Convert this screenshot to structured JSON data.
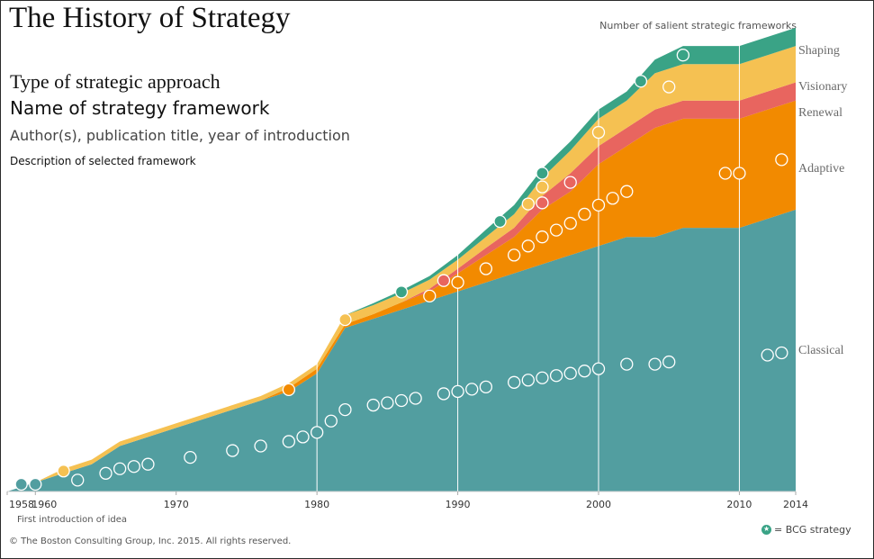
{
  "header": {
    "title": "The History of Strategy",
    "legend_line1": "Type of strategic approach",
    "legend_line2": "Name of strategy framework",
    "legend_line3": "Author(s), publication title, year of introduction",
    "legend_line4": "Description of selected framework"
  },
  "count_label": "Number of salient strategic frameworks",
  "first_intro_label": "First introduction of idea",
  "copyright": "© The Boston Consulting Group, Inc. 2015. All rights reserved.",
  "bcg_legend": "= BCG strategy",
  "colors": {
    "Classical": "#529ea0",
    "Adaptive": "#f28a00",
    "Renewal": "#e8655f",
    "Visionary": "#f5c152",
    "Shaping": "#3aa386"
  },
  "chart_data": {
    "type": "area",
    "stacked": true,
    "x_ticks": [
      "1958",
      "1960",
      "1970",
      "1980",
      "1990",
      "2000",
      "2010",
      "2014"
    ],
    "xlim": [
      1958,
      2014
    ],
    "series": [
      {
        "name": "Classical",
        "points": [
          [
            1958,
            0
          ],
          [
            1960,
            1
          ],
          [
            1962,
            2
          ],
          [
            1964,
            3
          ],
          [
            1966,
            5
          ],
          [
            1968,
            6
          ],
          [
            1970,
            7
          ],
          [
            1972,
            8
          ],
          [
            1974,
            9
          ],
          [
            1976,
            10
          ],
          [
            1978,
            11
          ],
          [
            1980,
            13
          ],
          [
            1982,
            18
          ],
          [
            1984,
            19
          ],
          [
            1986,
            20
          ],
          [
            1988,
            21
          ],
          [
            1990,
            22
          ],
          [
            1992,
            23
          ],
          [
            1994,
            24
          ],
          [
            1996,
            25
          ],
          [
            1998,
            26
          ],
          [
            2000,
            27
          ],
          [
            2002,
            28
          ],
          [
            2004,
            28
          ],
          [
            2006,
            29
          ],
          [
            2008,
            29
          ],
          [
            2010,
            29
          ],
          [
            2012,
            30
          ],
          [
            2014,
            31
          ]
        ]
      },
      {
        "name": "Adaptive",
        "points": [
          [
            1958,
            0
          ],
          [
            1960,
            0
          ],
          [
            1962,
            0
          ],
          [
            1964,
            0
          ],
          [
            1966,
            0
          ],
          [
            1968,
            0
          ],
          [
            1970,
            0
          ],
          [
            1972,
            0
          ],
          [
            1974,
            0
          ],
          [
            1976,
            0
          ],
          [
            1978,
            0.4
          ],
          [
            1980,
            0.5
          ],
          [
            1982,
            0.4
          ],
          [
            1984,
            0.5
          ],
          [
            1986,
            0.8
          ],
          [
            1988,
            1
          ],
          [
            1990,
            2
          ],
          [
            1992,
            3
          ],
          [
            1994,
            4
          ],
          [
            1996,
            6
          ],
          [
            1998,
            7
          ],
          [
            2000,
            9
          ],
          [
            2002,
            10
          ],
          [
            2004,
            12
          ],
          [
            2006,
            12
          ],
          [
            2008,
            12
          ],
          [
            2010,
            12
          ],
          [
            2012,
            12
          ],
          [
            2014,
            12
          ]
        ]
      },
      {
        "name": "Renewal",
        "points": [
          [
            1958,
            0
          ],
          [
            1960,
            0
          ],
          [
            1962,
            0
          ],
          [
            1964,
            0
          ],
          [
            1966,
            0
          ],
          [
            1968,
            0
          ],
          [
            1970,
            0
          ],
          [
            1972,
            0
          ],
          [
            1974,
            0
          ],
          [
            1976,
            0
          ],
          [
            1978,
            0
          ],
          [
            1980,
            0
          ],
          [
            1982,
            0
          ],
          [
            1984,
            0
          ],
          [
            1986,
            0
          ],
          [
            1988,
            0.3
          ],
          [
            1990,
            0.5
          ],
          [
            1992,
            0.8
          ],
          [
            1994,
            1
          ],
          [
            1996,
            1.5
          ],
          [
            1998,
            2
          ],
          [
            2000,
            2
          ],
          [
            2002,
            2
          ],
          [
            2004,
            2
          ],
          [
            2006,
            2
          ],
          [
            2008,
            2
          ],
          [
            2010,
            2
          ],
          [
            2012,
            2
          ],
          [
            2014,
            2
          ]
        ]
      },
      {
        "name": "Visionary",
        "points": [
          [
            1958,
            0
          ],
          [
            1960,
            0
          ],
          [
            1962,
            0.5
          ],
          [
            1964,
            0.5
          ],
          [
            1966,
            0.5
          ],
          [
            1968,
            0.5
          ],
          [
            1970,
            0.5
          ],
          [
            1972,
            0.5
          ],
          [
            1974,
            0.5
          ],
          [
            1976,
            0.5
          ],
          [
            1978,
            0.5
          ],
          [
            1980,
            0.5
          ],
          [
            1982,
            1
          ],
          [
            1984,
            1
          ],
          [
            1986,
            1
          ],
          [
            1988,
            1
          ],
          [
            1990,
            1
          ],
          [
            1992,
            1.2
          ],
          [
            1994,
            1.5
          ],
          [
            1996,
            2
          ],
          [
            1998,
            2.5
          ],
          [
            2000,
            3
          ],
          [
            2002,
            3
          ],
          [
            2004,
            4
          ],
          [
            2006,
            4
          ],
          [
            2008,
            4
          ],
          [
            2010,
            4
          ],
          [
            2012,
            4
          ],
          [
            2014,
            4
          ]
        ]
      },
      {
        "name": "Shaping",
        "points": [
          [
            1958,
            0
          ],
          [
            1960,
            0
          ],
          [
            1962,
            0
          ],
          [
            1964,
            0
          ],
          [
            1966,
            0
          ],
          [
            1968,
            0
          ],
          [
            1970,
            0
          ],
          [
            1972,
            0
          ],
          [
            1974,
            0
          ],
          [
            1976,
            0
          ],
          [
            1978,
            0
          ],
          [
            1980,
            0
          ],
          [
            1982,
            0
          ],
          [
            1984,
            0.2
          ],
          [
            1986,
            0.3
          ],
          [
            1988,
            0.4
          ],
          [
            1990,
            0.5
          ],
          [
            1992,
            0.8
          ],
          [
            1994,
            1
          ],
          [
            1996,
            1
          ],
          [
            1998,
            1
          ],
          [
            2000,
            1
          ],
          [
            2002,
            1
          ],
          [
            2004,
            1.5
          ],
          [
            2006,
            2
          ],
          [
            2008,
            2
          ],
          [
            2010,
            2
          ],
          [
            2012,
            2
          ],
          [
            2014,
            2
          ]
        ]
      }
    ]
  }
}
